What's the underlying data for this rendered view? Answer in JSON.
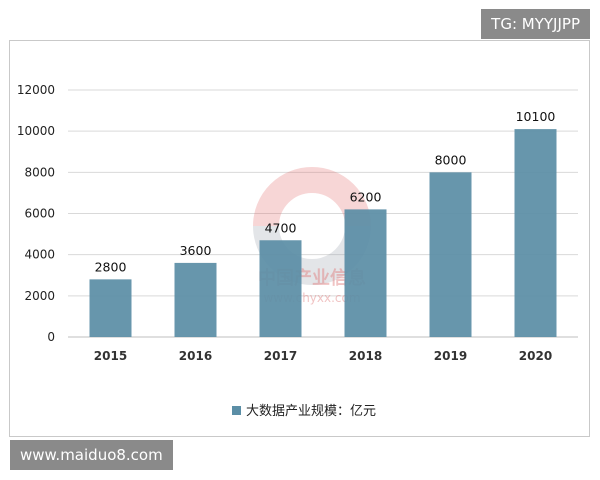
{
  "badges": {
    "top_right": "TG: MYYJJPP",
    "bottom_left": "www.maiduo8.com"
  },
  "watermark": {
    "cn_text": "中国产业信息",
    "url_text": "www.chyxx.com",
    "ring_colors": [
      "#e36a6a",
      "#9aa3ad"
    ],
    "text_color": "#e07b7b"
  },
  "colors": {
    "bar": "#5b8ea6",
    "grid": "#d9d9d9",
    "axis": "#bfbfbf"
  },
  "chart_data": {
    "type": "bar",
    "categories": [
      "2015",
      "2016",
      "2017",
      "2018",
      "2019",
      "2020"
    ],
    "series": [
      {
        "name": "大数据产业规模：亿元",
        "values": [
          2800,
          3600,
          4700,
          6200,
          8000,
          10100
        ]
      }
    ],
    "data_labels": [
      "2800",
      "3600",
      "4700",
      "6200",
      "8000",
      "10100"
    ],
    "ylim": [
      0,
      12000
    ],
    "yticks": [
      0,
      2000,
      4000,
      6000,
      8000,
      10000,
      12000
    ],
    "ytick_labels": [
      "0",
      "2000",
      "4000",
      "6000",
      "8000",
      "10000",
      "12000"
    ],
    "grid": true,
    "legend_position": "bottom"
  }
}
